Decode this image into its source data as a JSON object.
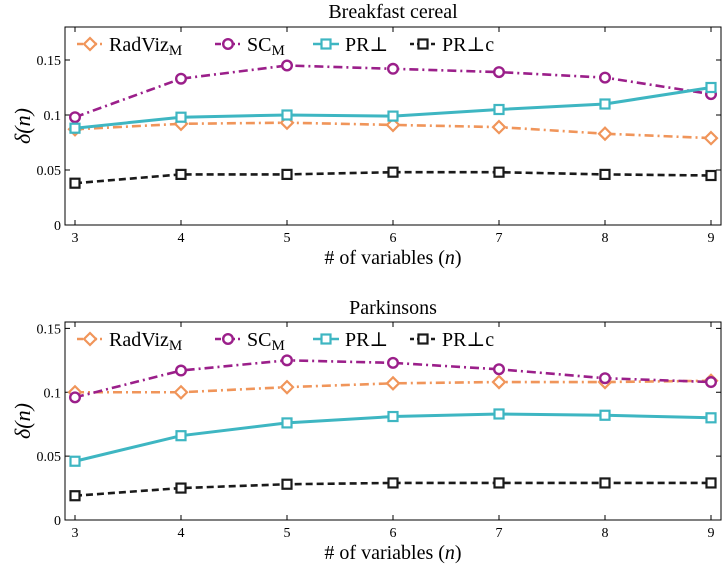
{
  "chart_data": [
    {
      "type": "line",
      "title": "Breakfast cereal",
      "xlabel": "# of variables (",
      "xlabel_var": "n",
      "xlabel_close": ")",
      "ylabel": "δ(n)",
      "x": [
        3,
        4,
        5,
        6,
        7,
        8,
        9
      ],
      "xlim": [
        3,
        9
      ],
      "ylim": [
        0,
        0.18
      ],
      "yticks": [
        0,
        0.05,
        0.1,
        0.15
      ],
      "ytick_labels": [
        "0",
        "0.05",
        "0.1",
        "0.15"
      ],
      "xtick_labels": [
        "3",
        "4",
        "5",
        "6",
        "7",
        "8",
        "9"
      ],
      "grid": false,
      "legend": "top",
      "series": [
        {
          "name": "RadViz",
          "name_sub": "M",
          "color": "#f0955a",
          "marker": "diamond",
          "line": "dashdot",
          "values": [
            0.087,
            0.092,
            0.093,
            0.091,
            0.089,
            0.083,
            0.079
          ]
        },
        {
          "name": "SC",
          "name_sub": "M",
          "color": "#9b1f8a",
          "marker": "circle",
          "line": "dashdot",
          "values": [
            0.098,
            0.133,
            0.145,
            0.142,
            0.139,
            0.134,
            0.119
          ]
        },
        {
          "name": "PR⊥",
          "name_sub": "",
          "color": "#3eb6c2",
          "marker": "square",
          "line": "solid",
          "values": [
            0.088,
            0.098,
            0.1,
            0.099,
            0.105,
            0.11,
            0.125
          ]
        },
        {
          "name": "PR⊥c",
          "name_sub": "",
          "color": "#1a1a1a",
          "marker": "square",
          "line": "dashed",
          "values": [
            0.038,
            0.046,
            0.046,
            0.048,
            0.048,
            0.046,
            0.045
          ]
        }
      ]
    },
    {
      "type": "line",
      "title": "Parkinsons",
      "xlabel": "# of variables (",
      "xlabel_var": "n",
      "xlabel_close": ")",
      "ylabel": "δ(n)",
      "x": [
        3,
        4,
        5,
        6,
        7,
        8,
        9
      ],
      "xlim": [
        3,
        9
      ],
      "ylim": [
        0,
        0.155
      ],
      "yticks": [
        0,
        0.05,
        0.1,
        0.15
      ],
      "ytick_labels": [
        "0",
        "0.05",
        "0.1",
        "0.15"
      ],
      "xtick_labels": [
        "3",
        "4",
        "5",
        "6",
        "7",
        "8",
        "9"
      ],
      "grid": false,
      "legend": "top",
      "series": [
        {
          "name": "RadViz",
          "name_sub": "M",
          "color": "#f0955a",
          "marker": "diamond",
          "line": "dashdot",
          "values": [
            0.1,
            0.1,
            0.104,
            0.107,
            0.108,
            0.108,
            0.109
          ]
        },
        {
          "name": "SC",
          "name_sub": "M",
          "color": "#9b1f8a",
          "marker": "circle",
          "line": "dashdot",
          "values": [
            0.096,
            0.117,
            0.125,
            0.123,
            0.118,
            0.111,
            0.108
          ]
        },
        {
          "name": "PR⊥",
          "name_sub": "",
          "color": "#3eb6c2",
          "marker": "square",
          "line": "solid",
          "values": [
            0.046,
            0.066,
            0.076,
            0.081,
            0.083,
            0.082,
            0.08
          ]
        },
        {
          "name": "PR⊥c",
          "name_sub": "",
          "color": "#1a1a1a",
          "marker": "square",
          "line": "dashed",
          "values": [
            0.019,
            0.025,
            0.028,
            0.029,
            0.029,
            0.029,
            0.029
          ]
        }
      ]
    }
  ]
}
